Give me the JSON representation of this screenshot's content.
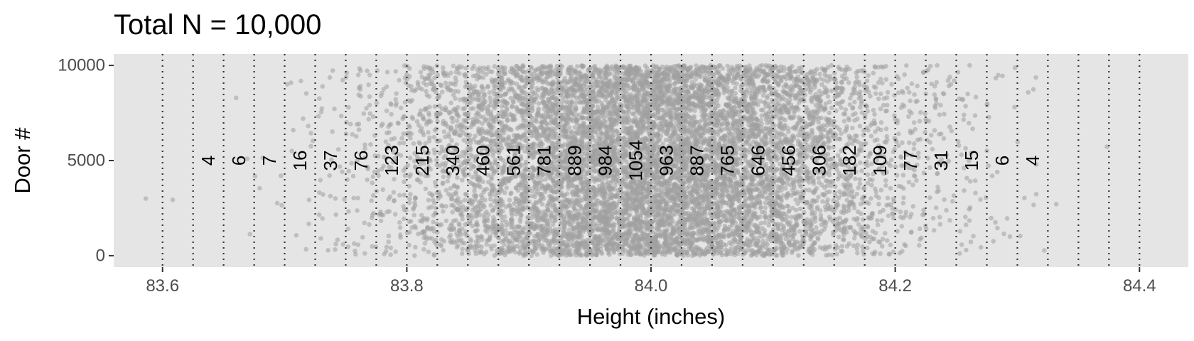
{
  "chart_data": {
    "type": "scatter",
    "title": "Total N = 10,000",
    "xlabel": "Height (inches)",
    "ylabel": "Door #",
    "xlim": [
      83.56,
      84.44
    ],
    "ylim": [
      -600,
      10600
    ],
    "x_ticks": [
      83.6,
      83.8,
      84.0,
      84.2,
      84.4
    ],
    "x_tick_labels": [
      "83.6",
      "83.8",
      "84.0",
      "84.2",
      "84.4"
    ],
    "y_ticks": [
      0,
      5000,
      10000
    ],
    "y_tick_labels": [
      "0",
      "5000",
      "10000"
    ],
    "bin_edges": [
      83.6,
      83.625,
      83.65,
      83.675,
      83.7,
      83.725,
      83.75,
      83.775,
      83.8,
      83.825,
      83.85,
      83.875,
      83.9,
      83.925,
      83.95,
      83.975,
      84.0,
      84.025,
      84.05,
      84.075,
      84.1,
      84.125,
      84.15,
      84.175,
      84.2,
      84.225,
      84.25,
      84.275,
      84.3,
      84.325,
      84.35,
      84.375,
      84.4
    ],
    "bin_counts": [
      {
        "x": 83.6375,
        "count": "4"
      },
      {
        "x": 83.6625,
        "count": "6"
      },
      {
        "x": 83.6875,
        "count": "7"
      },
      {
        "x": 83.7125,
        "count": "16"
      },
      {
        "x": 83.7375,
        "count": "37"
      },
      {
        "x": 83.7625,
        "count": "76"
      },
      {
        "x": 83.7875,
        "count": "123"
      },
      {
        "x": 83.8125,
        "count": "215"
      },
      {
        "x": 83.8375,
        "count": "340"
      },
      {
        "x": 83.8625,
        "count": "460"
      },
      {
        "x": 83.8875,
        "count": "561"
      },
      {
        "x": 83.9125,
        "count": "781"
      },
      {
        "x": 83.9375,
        "count": "889"
      },
      {
        "x": 83.9625,
        "count": "984"
      },
      {
        "x": 83.9875,
        "count": "1054"
      },
      {
        "x": 84.0125,
        "count": "963"
      },
      {
        "x": 84.0375,
        "count": "887"
      },
      {
        "x": 84.0625,
        "count": "765"
      },
      {
        "x": 84.0875,
        "count": "646"
      },
      {
        "x": 84.1125,
        "count": "456"
      },
      {
        "x": 84.1375,
        "count": "306"
      },
      {
        "x": 84.1625,
        "count": "182"
      },
      {
        "x": 84.1875,
        "count": "109"
      },
      {
        "x": 84.2125,
        "count": "77"
      },
      {
        "x": 84.2375,
        "count": "31"
      },
      {
        "x": 84.2625,
        "count": "15"
      },
      {
        "x": 84.2875,
        "count": "6"
      },
      {
        "x": 84.3125,
        "count": "4"
      }
    ],
    "label_y": 5000,
    "n_points": 10000,
    "distribution": {
      "mean": 84.0,
      "sd": 0.1
    },
    "grid": false,
    "colors": {
      "panel": "#e5e5e5",
      "point": "#a0a0a0",
      "reference_line": "#333333",
      "tick": "#333333"
    }
  }
}
